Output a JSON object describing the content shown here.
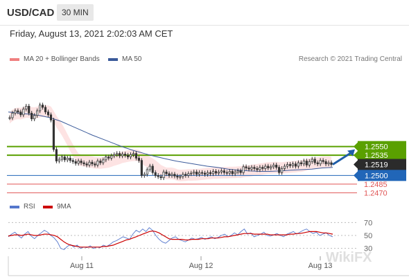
{
  "header": {
    "symbol": "USD/CAD",
    "timeframe": "30 MIN"
  },
  "timestamp": "Friday, August 13, 2021 2:02:03 AM CET",
  "legend": {
    "ma20_label": "MA 20 + Bollinger Bands",
    "ma50_label": "MA 50",
    "rsi_label": "RSI",
    "ma9_label": "9MA"
  },
  "copyright": "Research © 2021 Trading Central",
  "watermark": "WikiFX",
  "colors": {
    "ma20": "#f08080",
    "ma50": "#3a5a9a",
    "rsi": "#5577cc",
    "ma9": "#cc0000",
    "candle": "#333333",
    "green_level": "#5aa000",
    "blue_level": "#2166b8",
    "red_level": "#e05555",
    "band": "#fde0e0",
    "arrow": "#1f5da8"
  },
  "chart_data": [
    {
      "type": "candlestick",
      "title": "USD/CAD",
      "x_tick_labels": [
        "Aug 11",
        "Aug 12",
        "Aug 13"
      ],
      "ylim": [
        1.2462,
        1.2684
      ],
      "current_price": 1.2519,
      "levels": [
        {
          "value": 1.255,
          "label": "1.2550",
          "kind": "resistance"
        },
        {
          "value": 1.2535,
          "label": "1.2535",
          "kind": "resistance"
        },
        {
          "value": 1.2519,
          "label": "1.2519",
          "kind": "current"
        },
        {
          "value": 1.25,
          "label": "1.2500",
          "kind": "pivot"
        },
        {
          "value": 1.2485,
          "label": "1.2485",
          "kind": "support"
        },
        {
          "value": 1.247,
          "label": "1.2470",
          "kind": "support"
        }
      ],
      "closes": [
        1.26,
        1.2608,
        1.2612,
        1.261,
        1.2605,
        1.2615,
        1.262,
        1.2608,
        1.2598,
        1.2604,
        1.2612,
        1.2622,
        1.2618,
        1.261,
        1.2605,
        1.2596,
        1.2545,
        1.2525,
        1.2528,
        1.2532,
        1.2527,
        1.253,
        1.2526,
        1.2524,
        1.2521,
        1.2525,
        1.2522,
        1.252,
        1.2518,
        1.2523,
        1.252,
        1.2518,
        1.2525,
        1.2522,
        1.2527,
        1.2532,
        1.253,
        1.2534,
        1.2536,
        1.2538,
        1.2534,
        1.2537,
        1.2535,
        1.2532,
        1.2536,
        1.2538,
        1.253,
        1.2526,
        1.25,
        1.2502,
        1.251,
        1.2516,
        1.2505,
        1.25,
        1.2498,
        1.2496,
        1.2506,
        1.2503,
        1.25,
        1.2502,
        1.2499,
        1.2497,
        1.2498,
        1.2502,
        1.25,
        1.2503,
        1.2504,
        1.2506,
        1.2502,
        1.2505,
        1.2504,
        1.2502,
        1.2505,
        1.2503,
        1.2507,
        1.2504,
        1.2506,
        1.2508,
        1.2505,
        1.2504,
        1.2507,
        1.2503,
        1.2506,
        1.2508,
        1.2505,
        1.2515,
        1.2513,
        1.2511,
        1.2514,
        1.2512,
        1.251,
        1.2514,
        1.2512,
        1.2516,
        1.2513,
        1.2515,
        1.2518,
        1.2514,
        1.2505,
        1.2512,
        1.2516,
        1.2519,
        1.2517,
        1.252,
        1.2516,
        1.2522,
        1.252,
        1.2525,
        1.2518,
        1.2524,
        1.2528,
        1.2522,
        1.252,
        1.2526,
        1.2524,
        1.252,
        1.2522,
        1.2519
      ],
      "ma50": [
        1.261,
        1.2608,
        1.2606,
        1.2604,
        1.26,
        1.2594,
        1.2586,
        1.2578,
        1.257,
        1.2563,
        1.2556,
        1.2549,
        1.2543,
        1.2538,
        1.2533,
        1.2529,
        1.2525,
        1.2522,
        1.2519,
        1.2516,
        1.2514,
        1.2511,
        1.2509,
        1.2508,
        1.2507,
        1.2507,
        1.2508,
        1.2509,
        1.251,
        1.2511,
        1.2513,
        1.2514
      ],
      "ma50_note": "MA50 sampled every 4th bar",
      "band_halfwidth": 0.001
    },
    {
      "type": "line",
      "title": "RSI",
      "y_ticks": [
        30,
        50,
        70
      ],
      "ylim": [
        20,
        80
      ],
      "series": [
        {
          "name": "RSI",
          "values": [
            48,
            52,
            55,
            50,
            46,
            52,
            56,
            49,
            45,
            50,
            54,
            58,
            55,
            50,
            46,
            40,
            30,
            28,
            33,
            36,
            32,
            35,
            30,
            32,
            31,
            34,
            30,
            32,
            31,
            35,
            33,
            36,
            40,
            42,
            45,
            48,
            46,
            44,
            52,
            58,
            55,
            60,
            56,
            62,
            58,
            50,
            44,
            40,
            38,
            42,
            46,
            48,
            44,
            42,
            40,
            43,
            46,
            44,
            45,
            47,
            44,
            46,
            48,
            45,
            47,
            50,
            52,
            48,
            50,
            54,
            51,
            56,
            60,
            52,
            54,
            48,
            50,
            52,
            55,
            50,
            49,
            51,
            53,
            50,
            48,
            52,
            54,
            56,
            52,
            55,
            58,
            60,
            56,
            53,
            55,
            50,
            52,
            54,
            50,
            48
          ]
        },
        {
          "name": "9MA",
          "values": [
            49,
            50,
            51,
            51,
            50,
            51,
            52,
            51,
            50,
            50,
            51,
            52,
            52,
            51,
            50,
            48,
            44,
            40,
            37,
            35,
            34,
            33,
            32,
            32,
            32,
            32,
            32,
            32,
            32,
            33,
            33,
            34,
            35,
            37,
            39,
            41,
            43,
            44,
            46,
            48,
            50,
            52,
            54,
            56,
            57,
            56,
            54,
            51,
            48,
            45,
            44,
            44,
            44,
            44,
            43,
            43,
            44,
            44,
            44,
            45,
            45,
            45,
            46,
            46,
            46,
            47,
            48,
            48,
            49,
            50,
            51,
            52,
            53,
            53,
            53,
            52,
            52,
            52,
            52,
            52,
            51,
            51,
            51,
            51,
            51,
            51,
            52,
            52,
            53,
            53,
            54,
            55,
            56,
            56,
            56,
            55,
            54,
            54,
            53,
            52
          ]
        }
      ]
    }
  ]
}
